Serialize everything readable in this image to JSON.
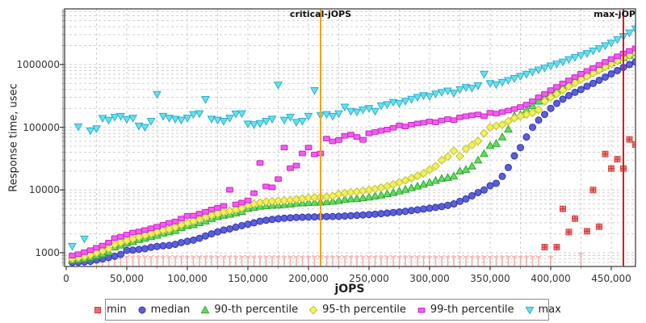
{
  "chart_data": {
    "type": "scatter",
    "title": "",
    "xlabel": "jOPS",
    "ylabel": "Response time, usec",
    "grid": true,
    "legend_position": "bottom",
    "x_axis": {
      "min": 0,
      "max": 470000,
      "major_step": 50000,
      "minor_step": 25000,
      "tick_values": [
        0,
        50000,
        100000,
        150000,
        200000,
        250000,
        300000,
        350000,
        400000,
        450000
      ],
      "tick_labels": [
        "0",
        "50,000",
        "100,000",
        "150,000",
        "200,000",
        "250,000",
        "300,000",
        "350,000",
        "400,000",
        "450,000"
      ]
    },
    "y_axis": {
      "scale": "log",
      "min": 605,
      "max": 7700000,
      "tick_values": [
        1000,
        10000,
        100000,
        1000000
      ],
      "tick_labels": [
        "1000",
        "10000",
        "100000",
        "1000000"
      ]
    },
    "reference_lines": [
      {
        "label": "critical-jOPS",
        "x": 210000,
        "color": "#F0A500"
      },
      {
        "label": "max-jOP",
        "x": 460000,
        "color": "#E61414"
      }
    ],
    "x_start": 5000,
    "x_step": 5000,
    "series": [
      {
        "name": "min",
        "marker": "tick-square",
        "color": "#F26B6B",
        "edge": "#D03A3A",
        "tick_color": "#F09C9C",
        "values": [
          860,
          860,
          860,
          860,
          860,
          860,
          860,
          860,
          860,
          860,
          860,
          860,
          860,
          860,
          860,
          860,
          860,
          860,
          860,
          860,
          860,
          860,
          860,
          860,
          860,
          860,
          860,
          860,
          860,
          860,
          860,
          860,
          860,
          860,
          860,
          860,
          860,
          860,
          860,
          860,
          860,
          860,
          860,
          860,
          860,
          860,
          860,
          860,
          860,
          860,
          860,
          860,
          860,
          860,
          860,
          860,
          860,
          860,
          860,
          860,
          860,
          860,
          860,
          860,
          860,
          860,
          860,
          860,
          860,
          860,
          860,
          860,
          860,
          860,
          860,
          860,
          860,
          860,
          1230,
          860,
          1230,
          5000,
          2140,
          3500,
          970,
          2200,
          10000,
          2600,
          37500,
          22000,
          31000,
          22000,
          64000,
          53000
        ]
      },
      {
        "name": "median",
        "marker": "circle",
        "color": "#5B60D6",
        "edge": "#3232B4",
        "values": [
          700,
          705,
          715,
          730,
          766,
          800,
          840,
          880,
          940,
          1090,
          1100,
          1130,
          1160,
          1220,
          1260,
          1290,
          1310,
          1360,
          1450,
          1520,
          1590,
          1700,
          1850,
          2000,
          2150,
          2300,
          2400,
          2550,
          2700,
          2850,
          3000,
          3180,
          3300,
          3400,
          3480,
          3550,
          3600,
          3650,
          3680,
          3700,
          3720,
          3740,
          3760,
          3780,
          3800,
          3850,
          3900,
          3950,
          4000,
          4060,
          4120,
          4200,
          4280,
          4370,
          4470,
          4580,
          4700,
          4830,
          4970,
          5120,
          5280,
          5450,
          5700,
          6000,
          6600,
          7200,
          8100,
          9100,
          10000,
          11700,
          12800,
          16500,
          22900,
          35000,
          47500,
          70000,
          100000,
          130000,
          160000,
          200000,
          240000,
          280000,
          320000,
          360000,
          400000,
          450000,
          500000,
          560000,
          630000,
          710000,
          800000,
          900000,
          1000000,
          1100000
        ]
      },
      {
        "name": "90-th percentile",
        "marker": "triangle-up",
        "color": "#63DB63",
        "edge": "#2FA82F",
        "values": [
          760,
          780,
          810,
          850,
          900,
          960,
          1030,
          1230,
          1320,
          1420,
          1500,
          1620,
          1700,
          1800,
          1900,
          2050,
          2140,
          2250,
          2500,
          2700,
          2790,
          3000,
          3200,
          3500,
          3750,
          3950,
          4100,
          4300,
          4550,
          5060,
          5300,
          5500,
          5600,
          5700,
          5750,
          5850,
          5950,
          6150,
          6200,
          6300,
          6350,
          6400,
          6500,
          6600,
          6800,
          7100,
          7200,
          7300,
          7500,
          7700,
          8000,
          8300,
          8700,
          9100,
          9600,
          10200,
          10800,
          11500,
          12300,
          13200,
          14200,
          15300,
          15800,
          16600,
          20000,
          21200,
          24000,
          30000,
          38000,
          51000,
          55000,
          70000,
          93000,
          152000,
          160000,
          190000,
          220000,
          260000,
          300000,
          340000,
          390000,
          440000,
          500000,
          560000,
          630000,
          700000,
          780000,
          870000,
          960000,
          1060000,
          1170000,
          1280000,
          1400000,
          1530000
        ]
      },
      {
        "name": "95-th percentile",
        "marker": "diamond",
        "color": "#F0F060",
        "edge": "#C2C22E",
        "values": [
          800,
          830,
          870,
          920,
          990,
          1070,
          1160,
          1360,
          1450,
          1560,
          1660,
          1780,
          1900,
          2020,
          2150,
          2280,
          2360,
          2550,
          2800,
          3000,
          3200,
          3450,
          3700,
          3950,
          4200,
          4450,
          4650,
          4850,
          5100,
          5750,
          6000,
          6300,
          6500,
          6600,
          6700,
          6800,
          6900,
          7100,
          7300,
          7500,
          7600,
          7700,
          7800,
          8000,
          8600,
          8900,
          9200,
          9400,
          9700,
          10000,
          10400,
          10900,
          11500,
          12300,
          13200,
          14200,
          15400,
          16800,
          18400,
          21000,
          24000,
          29800,
          34000,
          42000,
          34500,
          45000,
          52000,
          60000,
          80000,
          100000,
          105000,
          110000,
          125000,
          140000,
          150000,
          160000,
          170000,
          190000,
          260000,
          300000,
          340000,
          390000,
          450000,
          510000,
          580000,
          650000,
          730000,
          820000,
          920000,
          1030000,
          1150000,
          1280000,
          1420000,
          1560000
        ]
      },
      {
        "name": "99-th percentile",
        "marker": "square-wide",
        "color": "#F25CF0",
        "edge": "#C428C2",
        "values": [
          900,
          950,
          1020,
          1100,
          1200,
          1300,
          1450,
          1710,
          1800,
          1950,
          2100,
          2180,
          2300,
          2450,
          2600,
          2800,
          2990,
          3150,
          3500,
          3870,
          3900,
          4200,
          4500,
          4900,
          5200,
          5600,
          10080,
          5900,
          6300,
          6800,
          8900,
          27000,
          11400,
          11000,
          14950,
          47500,
          22300,
          24500,
          38300,
          47500,
          36900,
          38300,
          66000,
          59500,
          62700,
          73000,
          76500,
          70000,
          63000,
          80000,
          84000,
          88000,
          92000,
          98000,
          107000,
          103000,
          110000,
          115000,
          118000,
          124000,
          120000,
          128000,
          135000,
          130000,
          144000,
          150000,
          155000,
          160000,
          150000,
          170000,
          165000,
          175000,
          185000,
          195000,
          210000,
          230000,
          260000,
          300000,
          340000,
          390000,
          440000,
          500000,
          560000,
          630000,
          710000,
          790000,
          880000,
          980000,
          1100000,
          1220000,
          1350000,
          1500000,
          1650000,
          1800000
        ]
      },
      {
        "name": "max",
        "marker": "triangle-down",
        "color": "#66E0F0",
        "edge": "#2FAECC",
        "values": [
          1270,
          102000,
          1660,
          88000,
          95000,
          139000,
          130000,
          145000,
          150000,
          133000,
          140000,
          105000,
          100000,
          125000,
          334000,
          150000,
          140000,
          135000,
          130000,
          140000,
          160000,
          165000,
          278000,
          135000,
          130000,
          125000,
          140000,
          163000,
          165000,
          113000,
          110000,
          115000,
          125000,
          135000,
          472000,
          130000,
          145000,
          120000,
          125000,
          150000,
          385000,
          155000,
          160000,
          150000,
          165000,
          210000,
          180000,
          175000,
          190000,
          200000,
          180000,
          220000,
          230000,
          250000,
          240000,
          260000,
          280000,
          300000,
          320000,
          310000,
          340000,
          360000,
          380000,
          350000,
          400000,
          430000,
          420000,
          460000,
          700000,
          500000,
          480000,
          520000,
          560000,
          600000,
          650000,
          700000,
          760000,
          820000,
          880000,
          950000,
          1020000,
          1100000,
          1200000,
          1300000,
          1400000,
          1500000,
          1650000,
          1800000,
          2000000,
          2200000,
          2500000,
          2800000,
          3200000,
          3700000
        ]
      }
    ],
    "style": {
      "grid_color": "#CFCFCF",
      "plot_border_color": "#5A5A5A",
      "axis_line_color": "#B3B3B3",
      "legend_border_color": "#888888",
      "background": "#FFFFFF"
    }
  }
}
